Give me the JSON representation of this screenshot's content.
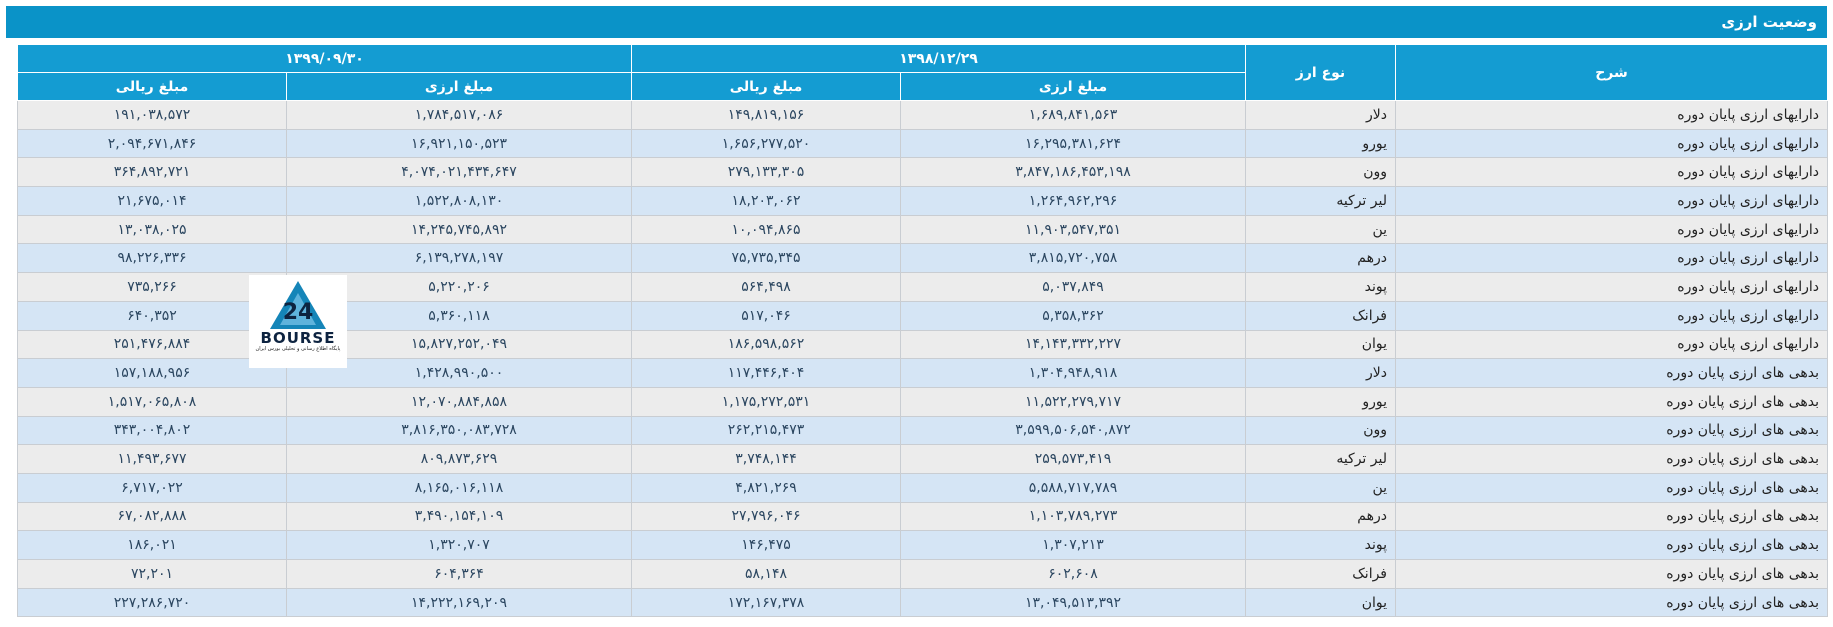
{
  "title": "وضعیت ارزی",
  "logo": {
    "brand": "BOURSE",
    "subtitle": "پایگاه اطلاع رسانی و تحلیلی بورس ایران"
  },
  "table": {
    "headers": {
      "description": "شرح",
      "currency": "نوع ارز",
      "period1": "۱۳۹۸/۱۲/۲۹",
      "period2": "۱۳۹۹/۰۹/۳۰",
      "sub": [
        "مبلغ ارزی",
        "مبلغ ریالی",
        "مبلغ ارزی",
        "مبلغ ریالی"
      ]
    },
    "rows": [
      [
        "دارایهای ارزی پایان دوره",
        "دلار",
        "۱,۶۸۹,۸۴۱,۵۶۳",
        "۱۴۹,۸۱۹,۱۵۶",
        "۱,۷۸۴,۵۱۷,۰۸۶",
        "۱۹۱,۰۳۸,۵۷۲"
      ],
      [
        "دارایهای ارزی پایان دوره",
        "یورو",
        "۱۶,۲۹۵,۳۸۱,۶۲۴",
        "۱,۶۵۶,۲۷۷,۵۲۰",
        "۱۶,۹۲۱,۱۵۰,۵۲۳",
        "۲,۰۹۴,۶۷۱,۸۴۶"
      ],
      [
        "دارایهای ارزی پایان دوره",
        "وون",
        "۳,۸۴۷,۱۸۶,۴۵۳,۱۹۸",
        "۲۷۹,۱۳۳,۳۰۵",
        "۴,۰۷۴,۰۲۱,۴۳۴,۶۴۷",
        "۳۶۴,۸۹۲,۷۲۱"
      ],
      [
        "دارایهای ارزی پایان دوره",
        "لیر ترکیه",
        "۱,۲۶۴,۹۶۲,۲۹۶",
        "۱۸,۲۰۳,۰۶۲",
        "۱,۵۲۲,۸۰۸,۱۳۰",
        "۲۱,۶۷۵,۰۱۴"
      ],
      [
        "دارایهای ارزی پایان دوره",
        "ین",
        "۱۱,۹۰۳,۵۴۷,۳۵۱",
        "۱۰,۰۹۴,۸۶۵",
        "۱۴,۲۴۵,۷۴۵,۸۹۲",
        "۱۳,۰۳۸,۰۲۵"
      ],
      [
        "دارایهای ارزی پایان دوره",
        "درهم",
        "۳,۸۱۵,۷۲۰,۷۵۸",
        "۷۵,۷۳۵,۳۴۵",
        "۶,۱۳۹,۲۷۸,۱۹۷",
        "۹۸,۲۲۶,۳۳۶"
      ],
      [
        "دارایهای ارزی پایان دوره",
        "پوند",
        "۵,۰۳۷,۸۴۹",
        "۵۶۴,۴۹۸",
        "۵,۲۲۰,۲۰۶",
        "۷۳۵,۲۶۶"
      ],
      [
        "دارایهای ارزی پایان دوره",
        "فرانک",
        "۵,۳۵۸,۳۶۲",
        "۵۱۷,۰۴۶",
        "۵,۳۶۰,۱۱۸",
        "۶۴۰,۳۵۲"
      ],
      [
        "دارایهای ارزی پایان دوره",
        "یوان",
        "۱۴,۱۴۳,۳۳۲,۲۲۷",
        "۱۸۶,۵۹۸,۵۶۲",
        "۱۵,۸۲۷,۲۵۲,۰۴۹",
        "۲۵۱,۴۷۶,۸۸۴"
      ],
      [
        "بدهی های ارزی پایان دوره",
        "دلار",
        "۱,۳۰۴,۹۴۸,۹۱۸",
        "۱۱۷,۴۴۶,۴۰۴",
        "۱,۴۲۸,۹۹۰,۵۰۰",
        "۱۵۷,۱۸۸,۹۵۶"
      ],
      [
        "بدهی های ارزی پایان دوره",
        "یورو",
        "۱۱,۵۲۲,۲۷۹,۷۱۷",
        "۱,۱۷۵,۲۷۲,۵۳۱",
        "۱۲,۰۷۰,۸۸۴,۸۵۸",
        "۱,۵۱۷,۰۶۵,۸۰۸"
      ],
      [
        "بدهی های ارزی پایان دوره",
        "وون",
        "۳,۵۹۹,۵۰۶,۵۴۰,۸۷۲",
        "۲۶۲,۲۱۵,۴۷۳",
        "۳,۸۱۶,۳۵۰,۰۸۳,۷۲۸",
        "۳۴۳,۰۰۴,۸۰۲"
      ],
      [
        "بدهی های ارزی پایان دوره",
        "لیر ترکیه",
        "۲۵۹,۵۷۳,۴۱۹",
        "۳,۷۴۸,۱۴۴",
        "۸۰۹,۸۷۳,۶۲۹",
        "۱۱,۴۹۳,۶۷۷"
      ],
      [
        "بدهی های ارزی پایان دوره",
        "ین",
        "۵,۵۸۸,۷۱۷,۷۸۹",
        "۴,۸۲۱,۲۶۹",
        "۸,۱۶۵,۰۱۶,۱۱۸",
        "۶,۷۱۷,۰۲۲"
      ],
      [
        "بدهی های ارزی پایان دوره",
        "درهم",
        "۱,۱۰۳,۷۸۹,۲۷۳",
        "۲۷,۷۹۶,۰۴۶",
        "۳,۴۹۰,۱۵۴,۱۰۹",
        "۶۷,۰۸۲,۸۸۸"
      ],
      [
        "بدهی های ارزی پایان دوره",
        "پوند",
        "۱,۳۰۷,۲۱۳",
        "۱۴۶,۴۷۵",
        "۱,۳۲۰,۷۰۷",
        "۱۸۶,۰۲۱"
      ],
      [
        "بدهی های ارزی پایان دوره",
        "فرانک",
        "۶۰۲,۶۰۸",
        "۵۸,۱۴۸",
        "۶۰۴,۳۶۴",
        "۷۲,۲۰۱"
      ],
      [
        "بدهی های ارزی پایان دوره",
        "یوان",
        "۱۳,۰۴۹,۵۱۳,۳۹۲",
        "۱۷۲,۱۶۷,۳۷۸",
        "۱۴,۲۲۲,۱۶۹,۲۰۹",
        "۲۲۷,۲۸۶,۷۲۰"
      ]
    ]
  }
}
